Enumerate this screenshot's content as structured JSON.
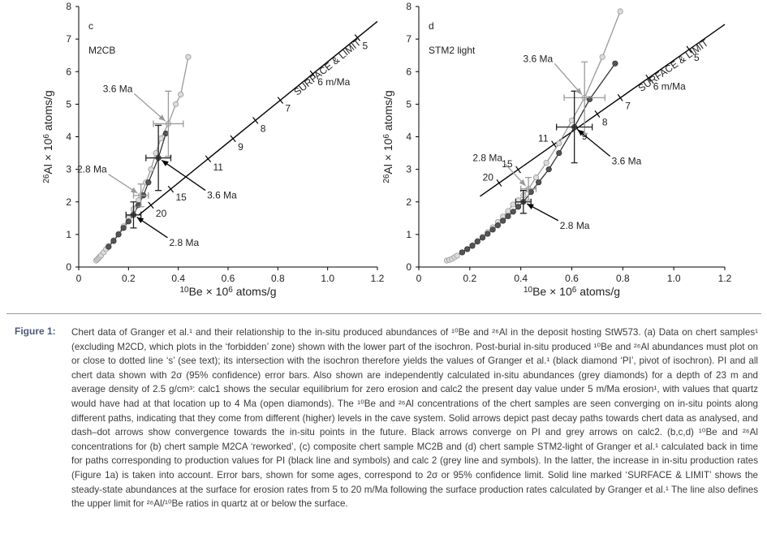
{
  "chart_data": [
    {
      "type": "line",
      "panel": "c",
      "sample": "M2CB",
      "xlabel": [
        "10",
        "Be × 10",
        "6",
        " atoms/g"
      ],
      "ylabel": [
        "26",
        "Al × 10",
        "6",
        " atoms/g"
      ],
      "xlim": [
        0,
        1.2
      ],
      "ylim": [
        0,
        8
      ],
      "xticks": [
        0,
        0.2,
        0.4,
        0.6,
        0.8,
        {
          "value": 1,
          "label": "1.0"
        },
        1.2
      ],
      "yticks": [
        0,
        1,
        2,
        3,
        4,
        5,
        6,
        7,
        8
      ],
      "surface_limit": {
        "label": "SURFACE & LIMIT",
        "color": "#000000",
        "x": [
          0.24,
          1.2
        ],
        "values": [
          1.59,
          7.54
        ]
      },
      "erosion": {
        "x": [
          0.29,
          0.37,
          0.52,
          0.62,
          0.71,
          0.81,
          0.94,
          1.12
        ],
        "values": [
          1.9,
          2.39,
          3.32,
          3.94,
          4.5,
          5.12,
          5.93,
          7.04
        ],
        "labels": [
          "20",
          "15",
          "11",
          "9",
          "8",
          "7",
          "6 m/Ma",
          "5"
        ]
      },
      "series": [
        {
          "color": "#9a9a9a",
          "fill": "#dcdcdc",
          "x": [
            0.07,
            0.075,
            0.08,
            0.085,
            0.09,
            0.1,
            0.11,
            0.12,
            0.14,
            0.16,
            0.18,
            0.2,
            0.22,
            0.24,
            0.25,
            0.27,
            0.29,
            0.31,
            0.33,
            0.36,
            0.39,
            0.41,
            0.44
          ],
          "values": [
            0.2,
            0.24,
            0.28,
            0.32,
            0.36,
            0.45,
            0.55,
            0.65,
            0.82,
            1.02,
            1.25,
            1.5,
            1.78,
            2.05,
            2.2,
            2.6,
            3.0,
            3.5,
            3.95,
            4.4,
            5.0,
            5.3,
            6.45
          ]
        },
        {
          "color": "#333333",
          "fill": "#555555",
          "x": [
            0.12,
            0.14,
            0.16,
            0.18,
            0.2,
            0.22,
            0.24,
            0.26,
            0.28,
            0.32,
            0.35
          ],
          "values": [
            0.62,
            0.8,
            1.0,
            1.2,
            1.4,
            1.6,
            1.9,
            2.2,
            2.6,
            3.35,
            4.1
          ]
        }
      ],
      "error_bars": {
        "colors": [
          "#9a9a9a",
          "#9a9a9a",
          "#222222",
          "#222222"
        ],
        "x": [
          0.36,
          0.25,
          0.32,
          0.22
        ],
        "values": [
          4.4,
          2.2,
          3.35,
          1.6
        ],
        "xerr": [
          0.06,
          0.03,
          0.05,
          0.03
        ],
        "yerr": [
          1.0,
          0.35,
          1.0,
          0.4
        ]
      },
      "annotations": [
        {
          "text": "3.6 Ma",
          "color": "#9a9a9a"
        },
        {
          "text": "2.8 Ma",
          "color": "#9a9a9a"
        },
        {
          "text": "3.6 Ma",
          "color": "#000000"
        },
        {
          "text": "2.8 Ma",
          "color": "#000000"
        }
      ]
    },
    {
      "type": "line",
      "panel": "d",
      "sample": "STM2 light",
      "xlabel": [
        "10",
        "Be × 10",
        "6",
        " atoms/g"
      ],
      "ylabel": [
        "26",
        "Al × 10",
        "6",
        " atoms/g"
      ],
      "xlim": [
        0,
        1.2
      ],
      "ylim": [
        0,
        8
      ],
      "xticks": [
        0,
        0.2,
        0.4,
        0.6,
        0.8,
        {
          "value": 1,
          "label": "1.0"
        },
        1.2
      ],
      "yticks": [
        0,
        1,
        2,
        3,
        4,
        5,
        6,
        7,
        8
      ],
      "surface_limit": {
        "label": "SURFACE & LIMIT",
        "color": "#000000",
        "x": [
          0.24,
          1.2
        ],
        "values": [
          2.17,
          7.45
        ]
      },
      "erosion": {
        "x": [
          0.315,
          0.39,
          0.53,
          0.62,
          0.7,
          0.79,
          0.9,
          1.06
        ],
        "values": [
          2.58,
          2.99,
          3.77,
          4.26,
          4.7,
          5.2,
          5.8,
          6.68
        ],
        "labels": [
          "20",
          "15",
          "11",
          "9",
          "8",
          "7",
          "6 m/Ma",
          "5"
        ]
      },
      "series": [
        {
          "color": "#9a9a9a",
          "fill": "#dcdcdc",
          "x": [
            0.11,
            0.12,
            0.13,
            0.14,
            0.15,
            0.17,
            0.19,
            0.21,
            0.23,
            0.25,
            0.27,
            0.29,
            0.31,
            0.33,
            0.35,
            0.37,
            0.39,
            0.41,
            0.43,
            0.46,
            0.5,
            0.55,
            0.6,
            0.65,
            0.72,
            0.79
          ],
          "values": [
            0.2,
            0.22,
            0.25,
            0.3,
            0.35,
            0.45,
            0.55,
            0.67,
            0.8,
            0.93,
            1.07,
            1.22,
            1.38,
            1.55,
            1.72,
            1.92,
            2.05,
            2.2,
            2.4,
            2.75,
            3.2,
            3.8,
            4.5,
            5.2,
            6.45,
            7.85
          ]
        },
        {
          "color": "#333333",
          "fill": "#555555",
          "x": [
            0.17,
            0.19,
            0.21,
            0.23,
            0.25,
            0.27,
            0.29,
            0.31,
            0.33,
            0.35,
            0.37,
            0.39,
            0.41,
            0.44,
            0.47,
            0.51,
            0.55,
            0.61,
            0.67,
            0.77
          ],
          "values": [
            0.45,
            0.55,
            0.65,
            0.78,
            0.9,
            1.02,
            1.15,
            1.28,
            1.42,
            1.56,
            1.7,
            1.85,
            2.0,
            2.3,
            2.6,
            3.0,
            3.5,
            4.3,
            5.15,
            6.25
          ]
        }
      ],
      "error_bars": {
        "colors": [
          "#9a9a9a",
          "#9a9a9a",
          "#222222",
          "#222222"
        ],
        "x": [
          0.65,
          0.43,
          0.61,
          0.41
        ],
        "values": [
          5.2,
          2.4,
          4.3,
          2.0
        ],
        "xerr": [
          0.08,
          0.03,
          0.07,
          0.03
        ],
        "yerr": [
          1.1,
          0.35,
          1.1,
          0.35
        ]
      },
      "annotations": [
        {
          "text": "3.6 Ma",
          "color": "#9a9a9a"
        },
        {
          "text": "2.8 Ma",
          "color": "#9a9a9a"
        },
        {
          "text": "3.6 Ma",
          "color": "#000000"
        },
        {
          "text": "2.8 Ma",
          "color": "#000000"
        }
      ]
    }
  ],
  "caption": {
    "label": "Figure 1:",
    "text": "Chert data of Granger et al.¹ and their relationship to the in-situ produced abundances of ¹⁰Be and ²⁶Al in the deposit hosting StW573. (a) Data on chert samples¹ (excluding M2CD, which plots in the ‘forbidden’ zone) shown with the lower part of the isochron. Post-burial in-situ produced ¹⁰Be and ²⁶Al abundances must plot on or close to dotted line ‘s’ (see text); its intersection with the isochron therefore yields the values of Granger et al.¹ (black diamond ‘PI’, pivot of isochron). PI and all chert data shown with 2σ (95% confidence) error bars. Also shown are independently calculated in-situ abundances (grey diamonds) for a depth of 23 m and average density of 2.5 g/cm³: calc1 shows the secular equilibrium for zero erosion and calc2 the present day value under 5 m/Ma erosion¹, with values that quartz would have had at that location up to 4 Ma (open diamonds). The ¹⁰Be and ²⁶Al concentrations of the chert samples are seen converging on in-situ points along different paths, indicating that they come from different (higher) levels in the cave system. Solid arrows depict past decay paths towards chert data as analysed, and dash–dot arrows show convergence towards the in-situ points in the future. Black arrows converge on PI and grey arrows on calc2. (b,c,d) ¹⁰Be and ²⁶Al concentrations for (b) chert sample M2CA ‘reworked’, (c) composite chert sample MC2B and (d) chert sample STM2-light of Granger et al.¹ calculated back in time for paths corresponding to production values for PI (black line and symbols) and calc 2 (grey line and symbols). In the latter, the increase in in-situ production rates (Figure 1a) is taken into account. Error bars, shown for some ages, correspond to 2σ or 95% confidence limit. Solid line marked ‘SURFACE & LIMIT’ shows the steady-state abundances at the surface for erosion rates from 5 to 20 m/Ma following the surface production rates calculated by Granger et al.¹ The line also defines the upper limit for ²⁶Al/¹⁰Be ratios in quartz at or below the surface."
  }
}
